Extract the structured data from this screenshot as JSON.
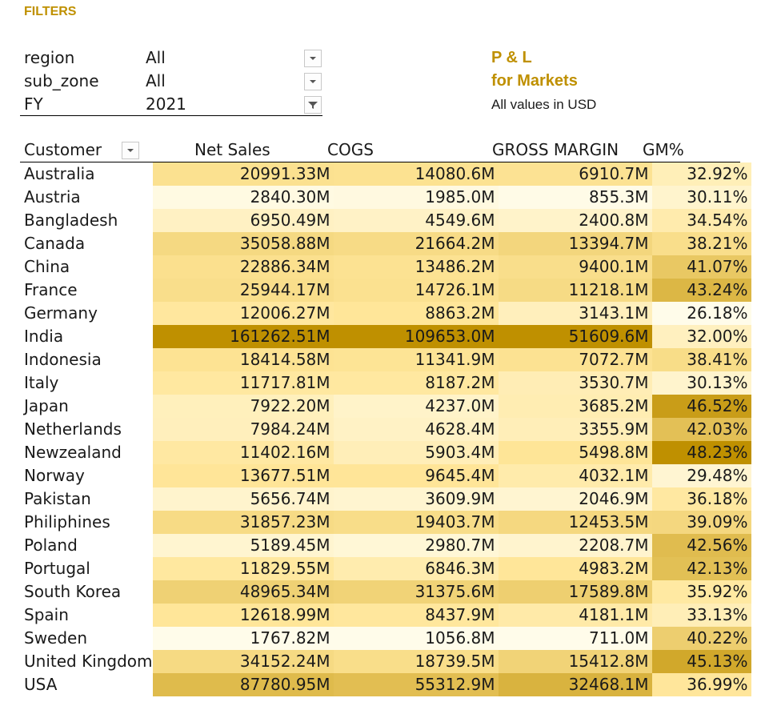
{
  "filters_label": "FILTERS",
  "filters": [
    {
      "name": "region",
      "value": "All",
      "icon": "chevron-down-icon"
    },
    {
      "name": "sub_zone",
      "value": "All",
      "icon": "chevron-down-icon"
    },
    {
      "name": "FY",
      "value": "2021",
      "icon": "filter-icon"
    }
  ],
  "report": {
    "title_line1": "P & L",
    "title_line2": "for Markets",
    "subtitle": "All values in USD"
  },
  "columns": {
    "customer": "Customer",
    "net_sales": "Net Sales",
    "cogs": "COGS",
    "gross_margin": "GROSS MARGIN",
    "gm_pct": "GM%"
  },
  "rows": [
    {
      "customer": "Australia",
      "net_sales": "20991.33M",
      "cogs": "14080.6M",
      "gross_margin": "6910.7M",
      "gm_pct": "32.92%"
    },
    {
      "customer": "Austria",
      "net_sales": "2840.30M",
      "cogs": "1985.0M",
      "gross_margin": "855.3M",
      "gm_pct": "30.11%"
    },
    {
      "customer": "Bangladesh",
      "net_sales": "6950.49M",
      "cogs": "4549.6M",
      "gross_margin": "2400.8M",
      "gm_pct": "34.54%"
    },
    {
      "customer": "Canada",
      "net_sales": "35058.88M",
      "cogs": "21664.2M",
      "gross_margin": "13394.7M",
      "gm_pct": "38.21%"
    },
    {
      "customer": "China",
      "net_sales": "22886.34M",
      "cogs": "13486.2M",
      "gross_margin": "9400.1M",
      "gm_pct": "41.07%"
    },
    {
      "customer": "France",
      "net_sales": "25944.17M",
      "cogs": "14726.1M",
      "gross_margin": "11218.1M",
      "gm_pct": "43.24%"
    },
    {
      "customer": "Germany",
      "net_sales": "12006.27M",
      "cogs": "8863.2M",
      "gross_margin": "3143.1M",
      "gm_pct": "26.18%"
    },
    {
      "customer": "India",
      "net_sales": "161262.51M",
      "cogs": "109653.0M",
      "gross_margin": "51609.6M",
      "gm_pct": "32.00%"
    },
    {
      "customer": "Indonesia",
      "net_sales": "18414.58M",
      "cogs": "11341.9M",
      "gross_margin": "7072.7M",
      "gm_pct": "38.41%"
    },
    {
      "customer": "Italy",
      "net_sales": "11717.81M",
      "cogs": "8187.2M",
      "gross_margin": "3530.7M",
      "gm_pct": "30.13%"
    },
    {
      "customer": "Japan",
      "net_sales": "7922.20M",
      "cogs": "4237.0M",
      "gross_margin": "3685.2M",
      "gm_pct": "46.52%"
    },
    {
      "customer": "Netherlands",
      "net_sales": "7984.24M",
      "cogs": "4628.4M",
      "gross_margin": "3355.9M",
      "gm_pct": "42.03%"
    },
    {
      "customer": "Newzealand",
      "net_sales": "11402.16M",
      "cogs": "5903.4M",
      "gross_margin": "5498.8M",
      "gm_pct": "48.23%"
    },
    {
      "customer": "Norway",
      "net_sales": "13677.51M",
      "cogs": "9645.4M",
      "gross_margin": "4032.1M",
      "gm_pct": "29.48%"
    },
    {
      "customer": "Pakistan",
      "net_sales": "5656.74M",
      "cogs": "3609.9M",
      "gross_margin": "2046.9M",
      "gm_pct": "36.18%"
    },
    {
      "customer": "Philiphines",
      "net_sales": "31857.23M",
      "cogs": "19403.7M",
      "gross_margin": "12453.5M",
      "gm_pct": "39.09%"
    },
    {
      "customer": "Poland",
      "net_sales": "5189.45M",
      "cogs": "2980.7M",
      "gross_margin": "2208.7M",
      "gm_pct": "42.56%"
    },
    {
      "customer": "Portugal",
      "net_sales": "11829.55M",
      "cogs": "6846.3M",
      "gross_margin": "4983.2M",
      "gm_pct": "42.13%"
    },
    {
      "customer": "South Korea",
      "net_sales": "48965.34M",
      "cogs": "31375.6M",
      "gross_margin": "17589.8M",
      "gm_pct": "35.92%"
    },
    {
      "customer": "Spain",
      "net_sales": "12618.99M",
      "cogs": "8437.9M",
      "gross_margin": "4181.1M",
      "gm_pct": "33.13%"
    },
    {
      "customer": "Sweden",
      "net_sales": "1767.82M",
      "cogs": "1056.8M",
      "gross_margin": "711.0M",
      "gm_pct": "40.22%"
    },
    {
      "customer": "United Kingdom",
      "net_sales": "34152.24M",
      "cogs": "18739.5M",
      "gross_margin": "15412.8M",
      "gm_pct": "45.13%"
    },
    {
      "customer": "USA",
      "net_sales": "87780.95M",
      "cogs": "55312.9M",
      "gross_margin": "32468.1M",
      "gm_pct": "36.99%"
    }
  ],
  "colors": {
    "accent": "#bf9000",
    "heat_low": "#fffcea",
    "heat_mid": "#ffe699",
    "heat_high": "#bf9000"
  }
}
